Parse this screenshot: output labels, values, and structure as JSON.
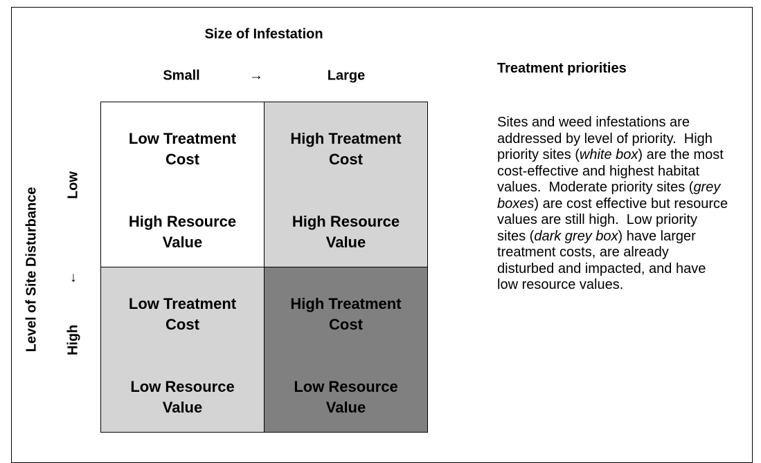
{
  "header": {
    "title": "Size of Infestation",
    "columns": [
      "Small",
      "→",
      "Large"
    ]
  },
  "side": {
    "title": "Level of Site Disturbance",
    "rows": [
      "Low",
      "↓",
      "High"
    ]
  },
  "cells": [
    {
      "lines": [
        "Low Treatment",
        "Cost",
        "High Resource",
        "Value"
      ]
    },
    {
      "lines": [
        "High Treatment",
        "Cost",
        "High Resource",
        "Value"
      ]
    },
    {
      "lines": [
        "Low Treatment",
        "Cost",
        "Low Resource",
        "Value"
      ]
    },
    {
      "lines": [
        "High Treatment",
        "Cost",
        "Low Resource",
        "Value"
      ]
    }
  ],
  "notes": {
    "title": "Treatment priorities",
    "segments": [
      "Sites and weed infestations are addressed by level of priority.  High priority sites (",
      "white box",
      ") are the most cost-effective and highest habitat values.  Moderate priority sites (",
      "grey boxes",
      ") are cost effective but resource values are still high.  Low priority sites (",
      "dark grey box",
      ") have larger treatment costs, are already disturbed and impacted, and have low resource values."
    ]
  }
}
